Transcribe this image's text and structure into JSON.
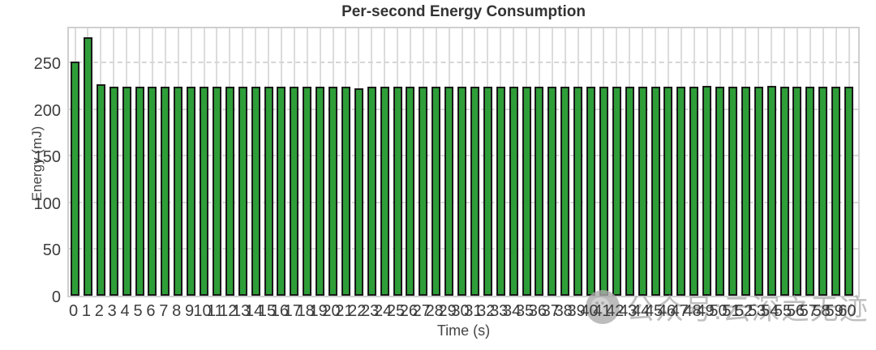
{
  "chart_data": {
    "type": "bar",
    "title": "Per-second Energy Consumption",
    "xlabel": "Time (s)",
    "ylabel": "Energy (mJ)",
    "categories": [
      "0",
      "1",
      "2",
      "3",
      "4",
      "5",
      "6",
      "7",
      "8",
      "9",
      "10",
      "11",
      "12",
      "13",
      "14",
      "15",
      "16",
      "17",
      "18",
      "19",
      "20",
      "21",
      "22",
      "23",
      "24",
      "25",
      "26",
      "27",
      "28",
      "29",
      "30",
      "31",
      "32",
      "33",
      "34",
      "35",
      "36",
      "37",
      "38",
      "39",
      "40",
      "41",
      "42",
      "43",
      "44",
      "45",
      "46",
      "47",
      "48",
      "49",
      "50",
      "51",
      "52",
      "53",
      "54",
      "55",
      "56",
      "57",
      "58",
      "59",
      "60"
    ],
    "values": [
      251,
      277,
      227,
      224,
      224,
      224,
      224,
      224,
      224,
      224,
      224,
      224,
      224,
      224,
      224,
      224,
      224,
      224,
      224,
      224,
      224,
      224,
      222,
      224,
      224,
      224,
      224,
      224,
      224,
      224,
      224,
      224,
      224,
      224,
      224,
      224,
      224,
      224,
      224,
      224,
      224,
      224,
      224,
      224,
      224,
      224,
      224,
      224,
      224,
      225,
      224,
      224,
      224,
      224,
      225,
      224,
      224,
      224,
      224,
      224,
      224
    ],
    "ylim": [
      0,
      290
    ],
    "yticks": [
      0,
      50,
      100,
      150,
      200,
      250
    ],
    "grid": {
      "vertical": "solid",
      "horizontal": "dashed",
      "enabled": true
    },
    "legend": "none",
    "bar_color": "#2e9e38",
    "bar_edge_color": "#1a1a1a"
  },
  "watermark": {
    "icon": "wechat-chat-bubble-icon",
    "text": "公众号:云深之无迹",
    "color": "#b0b0b0"
  }
}
